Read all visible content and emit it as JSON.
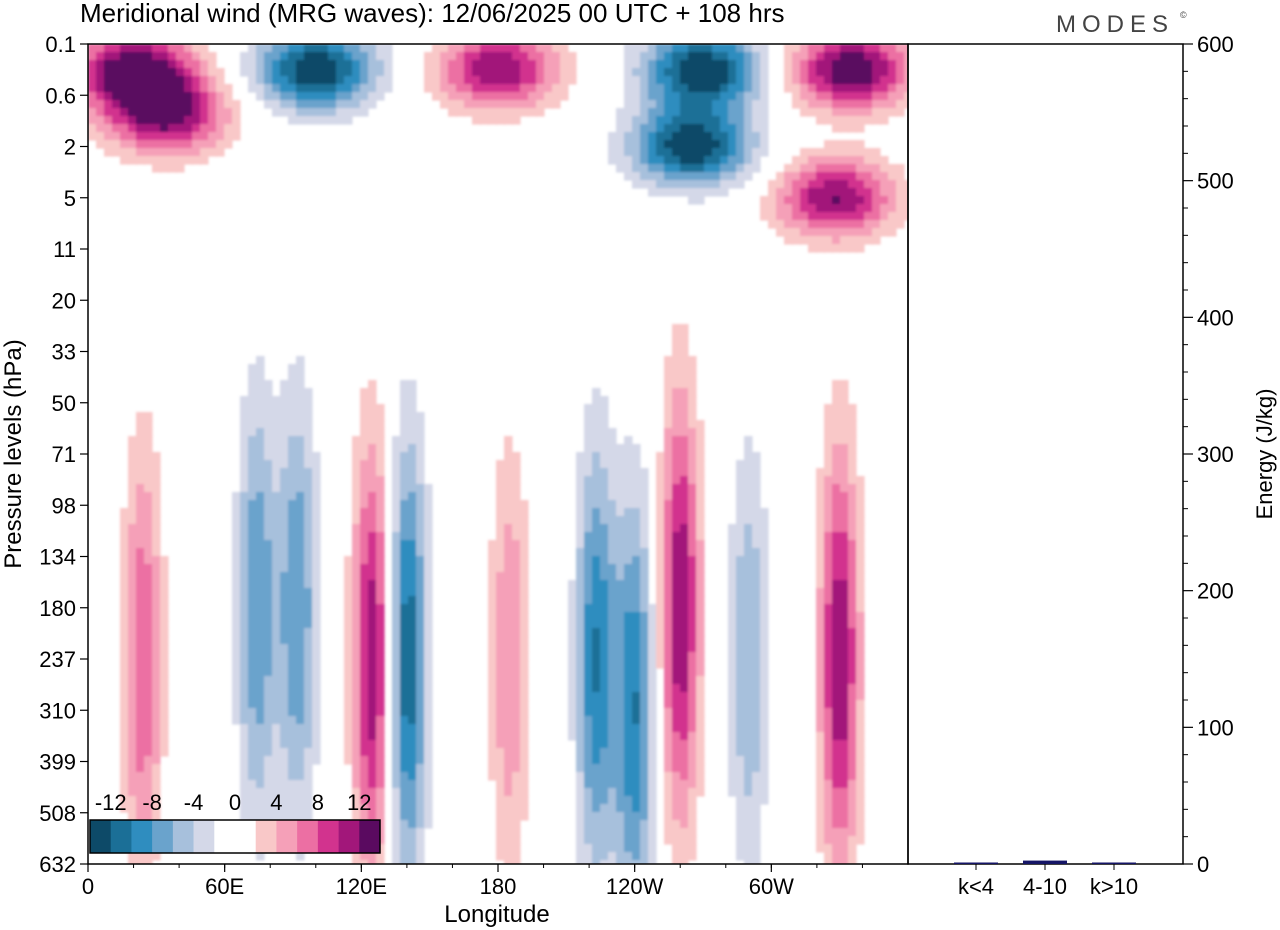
{
  "header": {
    "title": "Meridional wind (MRG waves):  12/06/2025  00 UTC  + 108 hrs",
    "brand": "MODES",
    "brand_mark": "©"
  },
  "colors": {
    "scale": [
      "#0d4a68",
      "#1b6f97",
      "#2f8dbf",
      "#6aa3cc",
      "#a7c0dc",
      "#d4d8e8",
      "#ffffff",
      "#ffffff",
      "#f9c8c8",
      "#f5a0b8",
      "#ec6fa3",
      "#d2338e",
      "#a2177a",
      "#5a0a60"
    ],
    "bar": "#151566"
  },
  "chart_data": [
    {
      "type": "heatmap",
      "title": "Meridional wind (MRG waves):  12/06/2025  00 UTC  + 108 hrs",
      "xlabel": "Longitude",
      "ylabel": "Pressure levels (hPa)",
      "x_ticks": [
        "0",
        "60E",
        "120E",
        "180",
        "120W",
        "60W"
      ],
      "x_tick_positions_deg": [
        0,
        60,
        120,
        180,
        240,
        300
      ],
      "xlim": [
        0,
        360
      ],
      "y_ticks": [
        "0.1",
        "0.6",
        "2",
        "5",
        "11",
        "20",
        "33",
        "50",
        "71",
        "98",
        "134",
        "180",
        "237",
        "310",
        "399",
        "508",
        "632"
      ],
      "y_scale": "log-pressure (model levels)",
      "colorbar": {
        "labels": [
          "-12",
          "-8",
          "-4",
          "0",
          "4",
          "8",
          "12"
        ],
        "levels": [
          -14,
          -12,
          -10,
          -8,
          -6,
          -4,
          -2,
          0,
          2,
          4,
          6,
          8,
          10,
          12,
          14
        ],
        "placement": "bottom-left"
      },
      "features": [
        {
          "lon": 20,
          "level": "0.3",
          "value": 14
        },
        {
          "lon": 100,
          "level": "0.3",
          "value": -14
        },
        {
          "lon": 35,
          "level": "1",
          "value": 12
        },
        {
          "lon": 180,
          "level": "0.3",
          "value": 12
        },
        {
          "lon": 270,
          "level": "0.3",
          "value": -14
        },
        {
          "lon": 335,
          "level": "0.3",
          "value": 14
        },
        {
          "lon": 265,
          "level": "2",
          "value": -14
        },
        {
          "lon": 328,
          "level": "5",
          "value": 12
        },
        {
          "lon": 24,
          "level": "237",
          "value": 8
        },
        {
          "lon": 74,
          "level": "180",
          "value": -8
        },
        {
          "lon": 92,
          "level": "180",
          "value": -8
        },
        {
          "lon": 125,
          "level": "237",
          "value": 12
        },
        {
          "lon": 140,
          "level": "237",
          "value": -12
        },
        {
          "lon": 185,
          "level": "237",
          "value": 6
        },
        {
          "lon": 223,
          "level": "237",
          "value": -10
        },
        {
          "lon": 240,
          "level": "310",
          "value": -10
        },
        {
          "lon": 260,
          "level": "180",
          "value": 12
        },
        {
          "lon": 290,
          "level": "237",
          "value": -6
        },
        {
          "lon": 330,
          "level": "237",
          "value": 12
        }
      ]
    },
    {
      "type": "bar",
      "ylabel": "Energy (J/kg)",
      "categories": [
        "k<4",
        "4-10",
        "k>10"
      ],
      "values": [
        0.5,
        2.5,
        0.5
      ],
      "ylim": [
        0,
        600
      ],
      "y_ticks": [
        "0",
        "100",
        "200",
        "300",
        "400",
        "500",
        "600"
      ]
    }
  ]
}
